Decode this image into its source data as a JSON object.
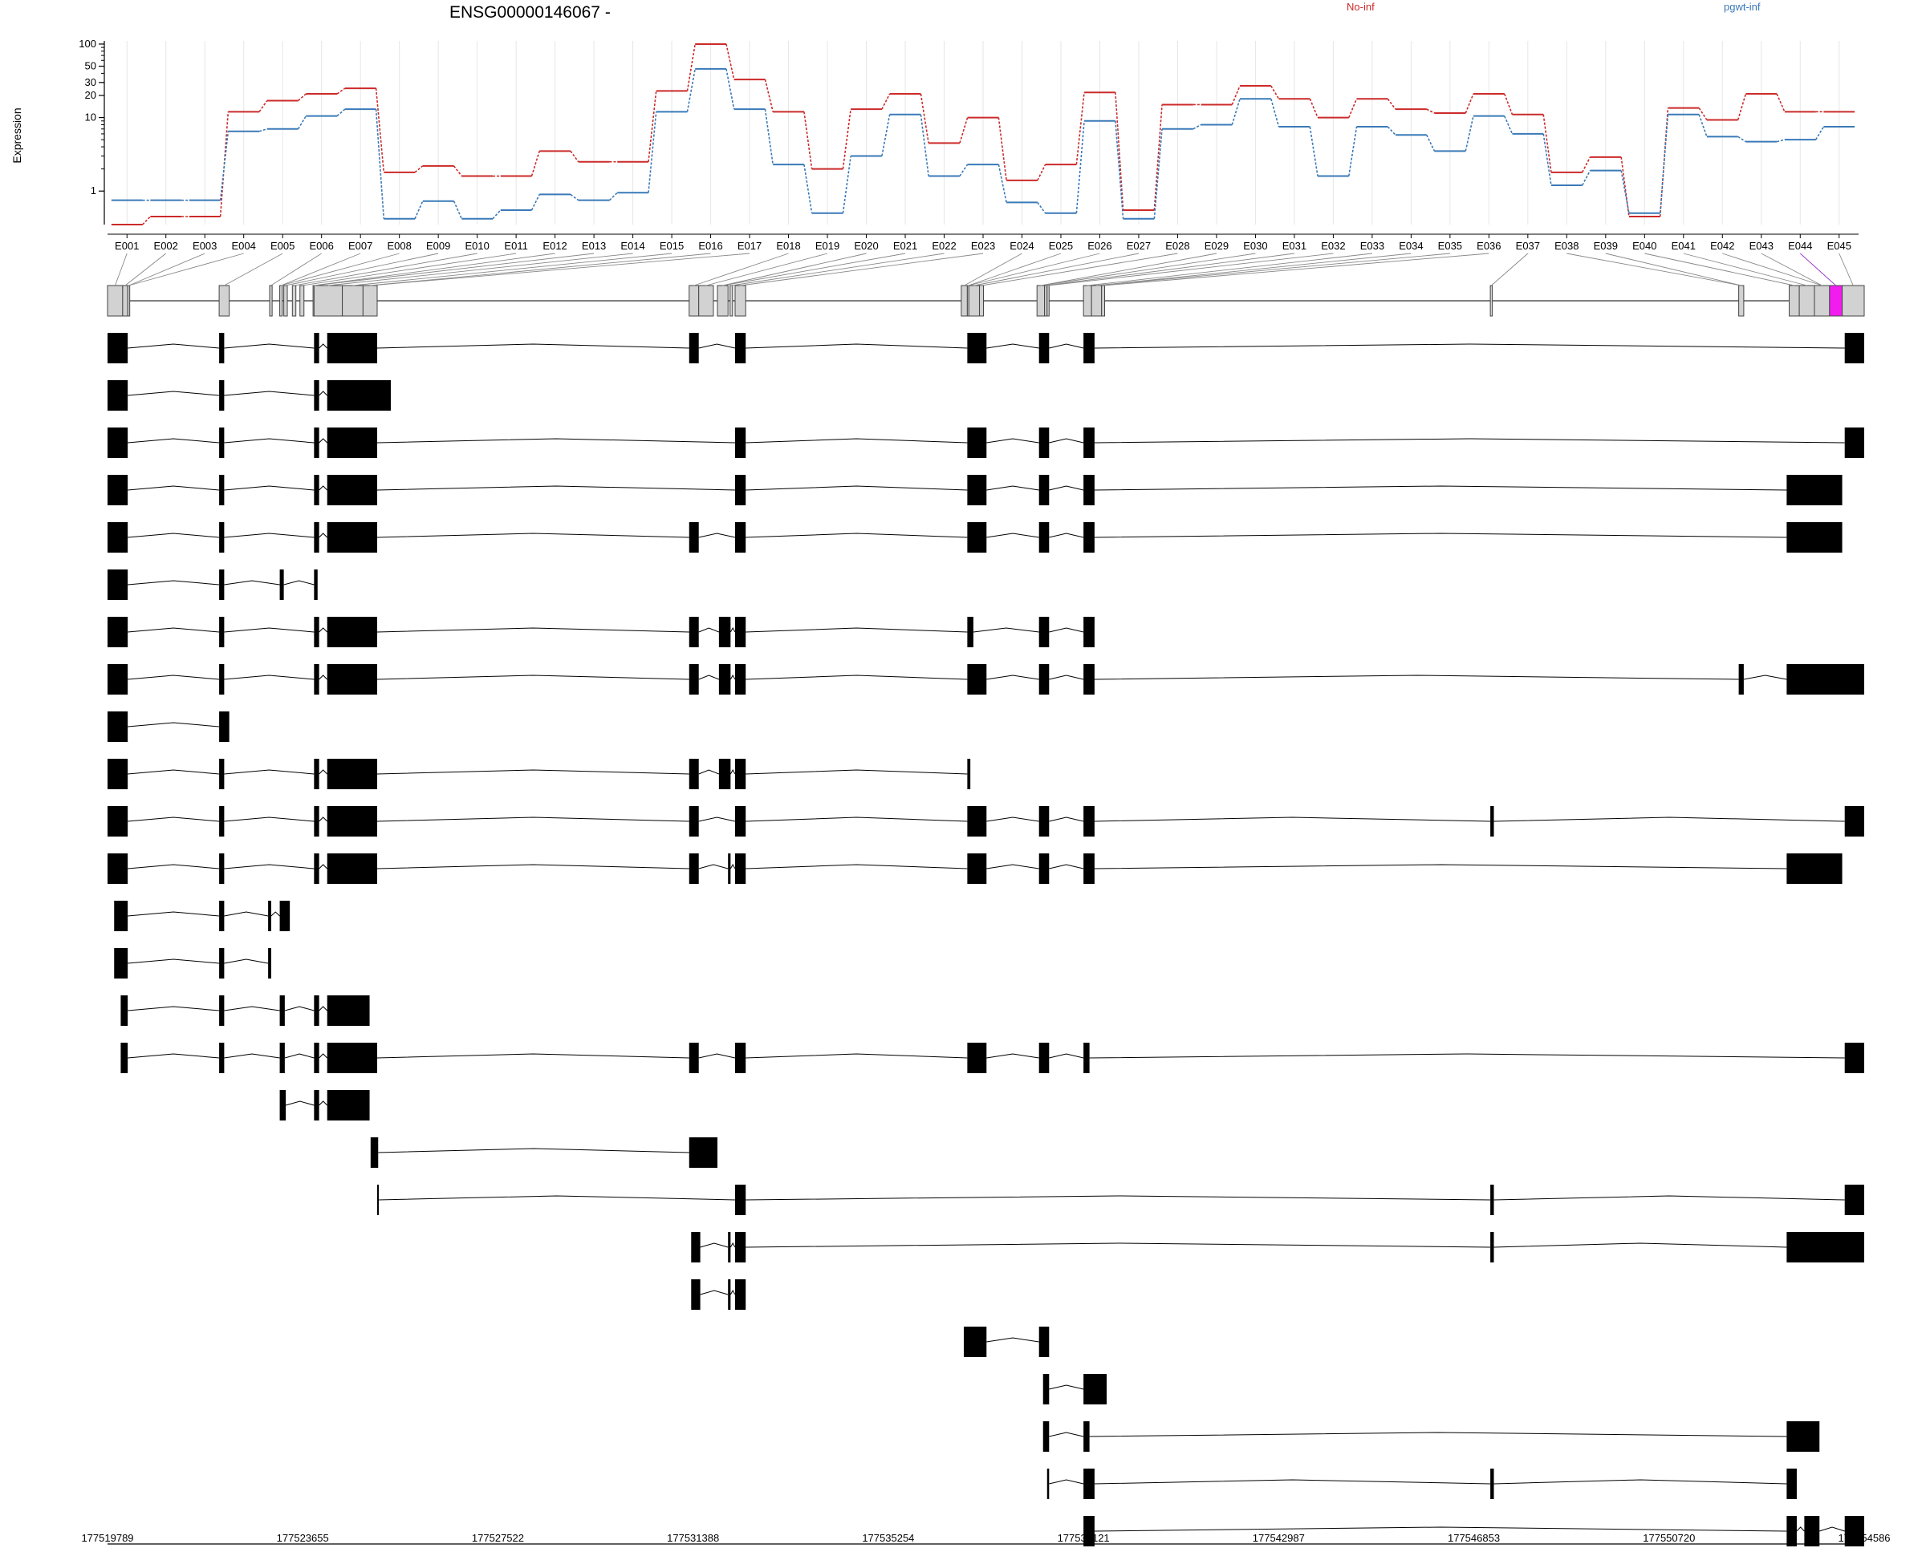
{
  "chart_data": {
    "type": "line",
    "title": "ENSG00000146067 -",
    "ylabel": "Expression",
    "y_scale": "log",
    "y_ticks": [
      "1",
      "10",
      "20",
      "30",
      "50",
      "100"
    ],
    "categories": [
      "E001",
      "E002",
      "E003",
      "E004",
      "E005",
      "E006",
      "E007",
      "E008",
      "E009",
      "E010",
      "E011",
      "E012",
      "E013",
      "E014",
      "E015",
      "E016",
      "E017",
      "E018",
      "E019",
      "E020",
      "E021",
      "E022",
      "E023",
      "E024",
      "E025",
      "E026",
      "E027",
      "E028",
      "E029",
      "E030",
      "E031",
      "E032",
      "E033",
      "E034",
      "E035",
      "E036",
      "E037",
      "E038",
      "E039",
      "E040",
      "E041",
      "E042",
      "E043",
      "E044",
      "E045"
    ],
    "series": [
      {
        "name": "No-inf",
        "color": "#cc2a2a",
        "values": [
          0.35,
          0.45,
          0.45,
          12,
          17,
          21,
          25,
          1.8,
          2.2,
          1.6,
          1.6,
          3.5,
          2.5,
          2.5,
          23,
          100,
          33,
          12,
          2,
          13,
          21,
          4.5,
          10,
          1.4,
          2.3,
          22,
          0.55,
          15,
          15,
          27,
          18,
          10,
          18,
          13,
          11.5,
          21,
          11,
          1.8,
          2.9,
          0.45,
          13.5,
          9.3,
          21,
          12,
          12
        ],
        "highlight_index": 43
      },
      {
        "name": "pgwt-inf",
        "color": "#3a7ab8",
        "values": [
          0.75,
          0.75,
          0.75,
          6.5,
          7,
          10.5,
          13,
          0.42,
          0.73,
          0.42,
          0.55,
          0.9,
          0.75,
          0.95,
          12,
          46,
          13,
          2.3,
          0.5,
          3,
          11,
          1.6,
          2.3,
          0.7,
          0.5,
          9,
          0.42,
          7,
          8,
          18,
          7.5,
          1.6,
          7.5,
          5.8,
          3.5,
          10.5,
          6,
          1.2,
          1.9,
          0.5,
          11,
          5.5,
          4.7,
          5,
          7.5
        ]
      }
    ],
    "genomic_axis": {
      "start": 177519789,
      "end": 177554586,
      "tick_labels": [
        "177519789",
        "177523655",
        "177527522",
        "177531388",
        "177535254",
        "177539121",
        "177542987",
        "177546853",
        "177550720",
        "177554586"
      ]
    },
    "gene_model_exons": [
      [
        177519789,
        177520089
      ],
      [
        177520089,
        177520189
      ],
      [
        177520189,
        177520189
      ],
      [
        177522000,
        177522200
      ],
      [
        177523000,
        177523050
      ],
      [
        177523200,
        177523250
      ],
      [
        177523280,
        177523350
      ],
      [
        177523450,
        177523520
      ],
      [
        177523600,
        177523680
      ],
      [
        177523860,
        177523870
      ],
      [
        177523880,
        177524440
      ],
      [
        177524440,
        177524850
      ],
      [
        177524850,
        177525130
      ],
      [
        177531310,
        177531500
      ],
      [
        177531500,
        177531790
      ],
      [
        177531870,
        177532080
      ],
      [
        177532120,
        177532170
      ],
      [
        177532220,
        177532430
      ],
      [
        177536700,
        177536820
      ],
      [
        177536820,
        177536850
      ],
      [
        177536850,
        177537060
      ],
      [
        177537060,
        177537140
      ],
      [
        177538200,
        177538350
      ],
      [
        177538350,
        177538400
      ],
      [
        177538400,
        177538410
      ],
      [
        177539121,
        177539280
      ],
      [
        177539280,
        177539480
      ],
      [
        177539480,
        177539540
      ],
      [
        177547180,
        177547220
      ],
      [
        177552100,
        177552200
      ],
      [
        177553100,
        177553300
      ],
      [
        177553300,
        177553600
      ],
      [
        177553600,
        177553900
      ],
      [
        177553900,
        177554150
      ],
      [
        177554150,
        177554586
      ]
    ],
    "highlighted_exon": "E044",
    "transcripts": [
      [
        [
          177519789,
          177520189
        ],
        [
          177522000,
          177522100
        ],
        [
          177523880,
          177523980
        ],
        [
          177524140,
          177525130
        ],
        [
          177531310,
          177531500
        ],
        [
          177532220,
          177532430
        ],
        [
          177536820,
          177537200
        ],
        [
          177538240,
          177538440
        ],
        [
          177539121,
          177539340
        ],
        [
          177554200,
          177554586
        ]
      ],
      [
        [
          177519789,
          177520189
        ],
        [
          177522000,
          177522100
        ],
        [
          177523880,
          177523980
        ],
        [
          177524140,
          177525400
        ]
      ],
      [
        [
          177519789,
          177520189
        ],
        [
          177522000,
          177522100
        ],
        [
          177523880,
          177523980
        ],
        [
          177524140,
          177525130
        ],
        [
          177532220,
          177532430
        ],
        [
          177536820,
          177537200
        ],
        [
          177538240,
          177538440
        ],
        [
          177539121,
          177539340
        ],
        [
          177554200,
          177554586
        ]
      ],
      [
        [
          177519789,
          177520189
        ],
        [
          177522000,
          177522100
        ],
        [
          177523880,
          177523980
        ],
        [
          177524140,
          177525130
        ],
        [
          177532220,
          177532430
        ],
        [
          177536820,
          177537200
        ],
        [
          177538240,
          177538440
        ],
        [
          177539121,
          177539340
        ],
        [
          177553050,
          177554150
        ]
      ],
      [
        [
          177519789,
          177520189
        ],
        [
          177522000,
          177522100
        ],
        [
          177523880,
          177523980
        ],
        [
          177524140,
          177525130
        ],
        [
          177531310,
          177531500
        ],
        [
          177532220,
          177532430
        ],
        [
          177536820,
          177537200
        ],
        [
          177538240,
          177538440
        ],
        [
          177539121,
          177539340
        ],
        [
          177553050,
          177554150
        ]
      ],
      [
        [
          177519789,
          177520189
        ],
        [
          177522000,
          177522100
        ],
        [
          177523200,
          177523280
        ],
        [
          177523880,
          177523950
        ]
      ],
      [
        [
          177519789,
          177520189
        ],
        [
          177522000,
          177522100
        ],
        [
          177523880,
          177523980
        ],
        [
          177524140,
          177525130
        ],
        [
          177531310,
          177531500
        ],
        [
          177531900,
          177532130
        ],
        [
          177532220,
          177532430
        ],
        [
          177536820,
          177536940
        ],
        [
          177538240,
          177538440
        ],
        [
          177539121,
          177539340
        ]
      ],
      [
        [
          177519789,
          177520189
        ],
        [
          177522000,
          177522100
        ],
        [
          177523880,
          177523980
        ],
        [
          177524140,
          177525130
        ],
        [
          177531310,
          177531500
        ],
        [
          177531900,
          177532130
        ],
        [
          177532220,
          177532430
        ],
        [
          177536820,
          177537200
        ],
        [
          177538240,
          177538440
        ],
        [
          177539121,
          177539340
        ],
        [
          177552100,
          177552200
        ],
        [
          177553050,
          177554586
        ]
      ],
      [
        [
          177519789,
          177520189
        ],
        [
          177522000,
          177522200
        ]
      ],
      [
        [
          177519789,
          177520189
        ],
        [
          177522000,
          177522100
        ],
        [
          177523880,
          177523980
        ],
        [
          177524140,
          177525130
        ],
        [
          177531310,
          177531500
        ],
        [
          177531900,
          177532130
        ],
        [
          177532220,
          177532430
        ],
        [
          177536820,
          177536880
        ]
      ],
      [
        [
          177519789,
          177520189
        ],
        [
          177522000,
          177522100
        ],
        [
          177523880,
          177523980
        ],
        [
          177524140,
          177525130
        ],
        [
          177531310,
          177531500
        ],
        [
          177532220,
          177532430
        ],
        [
          177536820,
          177537200
        ],
        [
          177538240,
          177538440
        ],
        [
          177539121,
          177539340
        ],
        [
          177547180,
          177547250
        ],
        [
          177554200,
          177554586
        ]
      ],
      [
        [
          177519789,
          177520189
        ],
        [
          177522000,
          177522100
        ],
        [
          177523880,
          177523980
        ],
        [
          177524140,
          177525130
        ],
        [
          177531310,
          177531500
        ],
        [
          177532080,
          177532130
        ],
        [
          177532220,
          177532430
        ],
        [
          177536820,
          177537200
        ],
        [
          177538240,
          177538440
        ],
        [
          177539121,
          177539340
        ],
        [
          177553050,
          177554150
        ]
      ],
      [
        [
          177519920,
          177520189
        ],
        [
          177522000,
          177522100
        ],
        [
          177522970,
          177523030
        ],
        [
          177523200,
          177523400
        ]
      ],
      [
        [
          177519920,
          177520189
        ],
        [
          177522000,
          177522100
        ],
        [
          177522970,
          177523030
        ]
      ],
      [
        [
          177520050,
          177520189
        ],
        [
          177522000,
          177522100
        ],
        [
          177523200,
          177523300
        ],
        [
          177523880,
          177523980
        ],
        [
          177524140,
          177524980
        ]
      ],
      [
        [
          177520050,
          177520189
        ],
        [
          177522000,
          177522100
        ],
        [
          177523200,
          177523300
        ],
        [
          177523880,
          177523980
        ],
        [
          177524140,
          177525130
        ],
        [
          177531310,
          177531500
        ],
        [
          177532220,
          177532430
        ],
        [
          177536820,
          177537200
        ],
        [
          177538240,
          177538440
        ],
        [
          177539121,
          177539240
        ],
        [
          177554200,
          177554586
        ]
      ],
      [
        [
          177523200,
          177523320
        ],
        [
          177523880,
          177523980
        ],
        [
          177524140,
          177524980
        ]
      ],
      [
        [
          177525000,
          177525150
        ],
        [
          177531310,
          177531870
        ]
      ],
      [
        [
          177525130,
          177525150
        ],
        [
          177532220,
          177532430
        ],
        [
          177547180,
          177547250
        ],
        [
          177554200,
          177554586
        ]
      ],
      [
        [
          177531350,
          177531530
        ],
        [
          177532080,
          177532130
        ],
        [
          177532220,
          177532430
        ],
        [
          177547180,
          177547250
        ],
        [
          177553050,
          177554586
        ]
      ],
      [
        [
          177531350,
          177531530
        ],
        [
          177532080,
          177532130
        ],
        [
          177532220,
          177532430
        ]
      ],
      [
        [
          177536750,
          177537200
        ],
        [
          177538240,
          177538440
        ]
      ],
      [
        [
          177538320,
          177538440
        ],
        [
          177539121,
          177539580
        ]
      ],
      [
        [
          177538320,
          177538440
        ],
        [
          177539121,
          177539240
        ],
        [
          177553050,
          177553700
        ]
      ],
      [
        [
          177538400,
          177538440
        ],
        [
          177539121,
          177539340
        ],
        [
          177547180,
          177547250
        ],
        [
          177553050,
          177553250
        ]
      ],
      [
        [
          177539121,
          177539340
        ],
        [
          177553050,
          177553250
        ],
        [
          177553400,
          177553700
        ],
        [
          177554200,
          177554586
        ]
      ]
    ]
  }
}
